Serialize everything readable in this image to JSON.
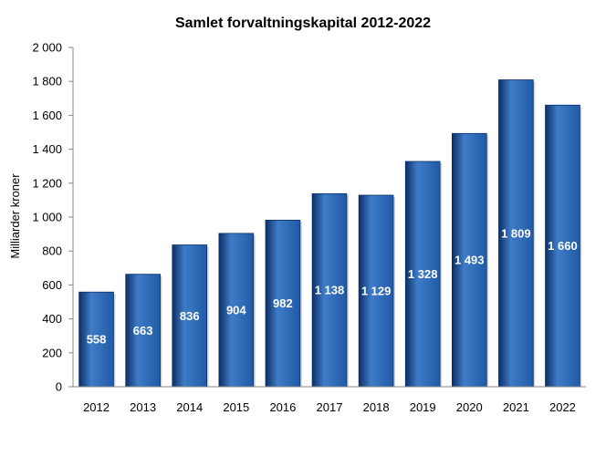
{
  "chart_data": {
    "type": "bar",
    "title": "Samlet forvaltningskapital 2012-2022",
    "xlabel": "",
    "ylabel": "Milliarder kroner",
    "categories": [
      "2012",
      "2013",
      "2014",
      "2015",
      "2016",
      "2017",
      "2018",
      "2019",
      "2020",
      "2021",
      "2022"
    ],
    "values": [
      558,
      663,
      836,
      904,
      982,
      1138,
      1129,
      1328,
      1493,
      1809,
      1660
    ],
    "data_labels": [
      "558",
      "663",
      "836",
      "904",
      "982",
      "1 138",
      "1 129",
      "1 328",
      "1 493",
      "1 809",
      "1 660"
    ],
    "ylim": [
      0,
      2000
    ],
    "yticks": [
      0,
      200,
      400,
      600,
      800,
      1000,
      1200,
      1400,
      1600,
      1800,
      2000
    ],
    "ytick_labels": [
      "0",
      "200",
      "400",
      "600",
      "800",
      "1 000",
      "1 200",
      "1 400",
      "1 600",
      "1 800",
      "2 000"
    ],
    "grid": false,
    "legend": "none",
    "bar_color": "#1f5aa6",
    "bar_color_dark": "#0c2f66",
    "bar_color_light": "#3f7cc8"
  }
}
